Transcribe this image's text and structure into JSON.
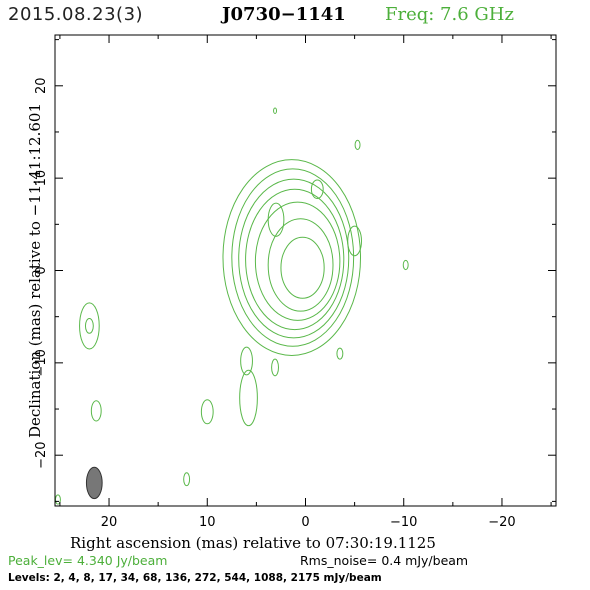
{
  "header": {
    "date": "2015.08.23(3)",
    "source": "J0730−1141",
    "freq": "Freq: 7.6 GHz"
  },
  "colors": {
    "contour": "#5ab84a",
    "beam": "#777777",
    "accent_text": "#4caf3a"
  },
  "chart_data": {
    "type": "contour",
    "xlabel": "Right ascension (mas) relative to 07:30:19.1125",
    "ylabel": "Declination (mas) relative to −11:41:12.601",
    "xlim": [
      25.5,
      -25.5
    ],
    "ylim": [
      -25.5,
      25.5
    ],
    "x_ticks": [
      20,
      10,
      0,
      -10,
      -20
    ],
    "x_tick_labels": [
      "20",
      "10",
      "0",
      "−10",
      "−20"
    ],
    "y_ticks": [
      20,
      10,
      0,
      -10,
      -20
    ],
    "y_tick_labels": [
      "20",
      "10",
      "0",
      "−10",
      "−20"
    ],
    "components": [
      {
        "cx": 0.3,
        "cy": 0.3,
        "rx": 2.2,
        "ry": 3.3
      },
      {
        "cx": 0.5,
        "cy": 0.6,
        "rx": 3.3,
        "ry": 5.0
      },
      {
        "cx": 0.8,
        "cy": 1.0,
        "rx": 4.3,
        "ry": 6.4
      },
      {
        "cx": 1.1,
        "cy": 1.2,
        "rx": 5.0,
        "ry": 7.6
      },
      {
        "cx": 1.2,
        "cy": 1.3,
        "rx": 5.6,
        "ry": 8.6
      },
      {
        "cx": 1.3,
        "cy": 1.4,
        "rx": 6.2,
        "ry": 9.6
      },
      {
        "cx": 1.4,
        "cy": 1.4,
        "rx": 7.0,
        "ry": 10.6
      },
      {
        "cx": 3.0,
        "cy": 5.5,
        "rx": 0.8,
        "ry": 1.8
      },
      {
        "cx": -1.2,
        "cy": 8.8,
        "rx": 0.6,
        "ry": 1.0
      },
      {
        "cx": -5.0,
        "cy": 3.2,
        "rx": 0.7,
        "ry": 1.6
      },
      {
        "cx": -5.3,
        "cy": 13.6,
        "rx": 0.25,
        "ry": 0.5
      },
      {
        "cx": 3.1,
        "cy": 17.3,
        "rx": 0.15,
        "ry": 0.3
      },
      {
        "cx": -10.2,
        "cy": 0.6,
        "rx": 0.25,
        "ry": 0.5
      },
      {
        "cx": 22.0,
        "cy": -6.0,
        "rx": 1.0,
        "ry": 2.5
      },
      {
        "cx": 22.0,
        "cy": -6.0,
        "rx": 0.4,
        "ry": 0.8
      },
      {
        "cx": 21.3,
        "cy": -15.2,
        "rx": 0.5,
        "ry": 1.1
      },
      {
        "cx": 10.0,
        "cy": -15.3,
        "rx": 0.6,
        "ry": 1.3
      },
      {
        "cx": 5.8,
        "cy": -13.8,
        "rx": 0.9,
        "ry": 3.0
      },
      {
        "cx": 6.0,
        "cy": -9.8,
        "rx": 0.6,
        "ry": 1.5
      },
      {
        "cx": 3.1,
        "cy": -10.5,
        "rx": 0.35,
        "ry": 0.9
      },
      {
        "cx": -3.5,
        "cy": -9.0,
        "rx": 0.3,
        "ry": 0.6
      },
      {
        "cx": 12.1,
        "cy": -22.6,
        "rx": 0.3,
        "ry": 0.7
      },
      {
        "cx": 25.2,
        "cy": -24.8,
        "rx": 0.25,
        "ry": 0.5
      }
    ],
    "beam": {
      "cx": 21.5,
      "cy": -23.0,
      "rx": 0.8,
      "ry": 1.7
    }
  },
  "footer": {
    "peak": "Peak_lev=  4.340 Jy/beam",
    "rms": "Rms_noise=   0.4 mJy/beam",
    "levels": "Levels:   2,    4,    8,   17,   34,   68,  136,  272,  544,  1088,  2175  mJy/beam"
  }
}
